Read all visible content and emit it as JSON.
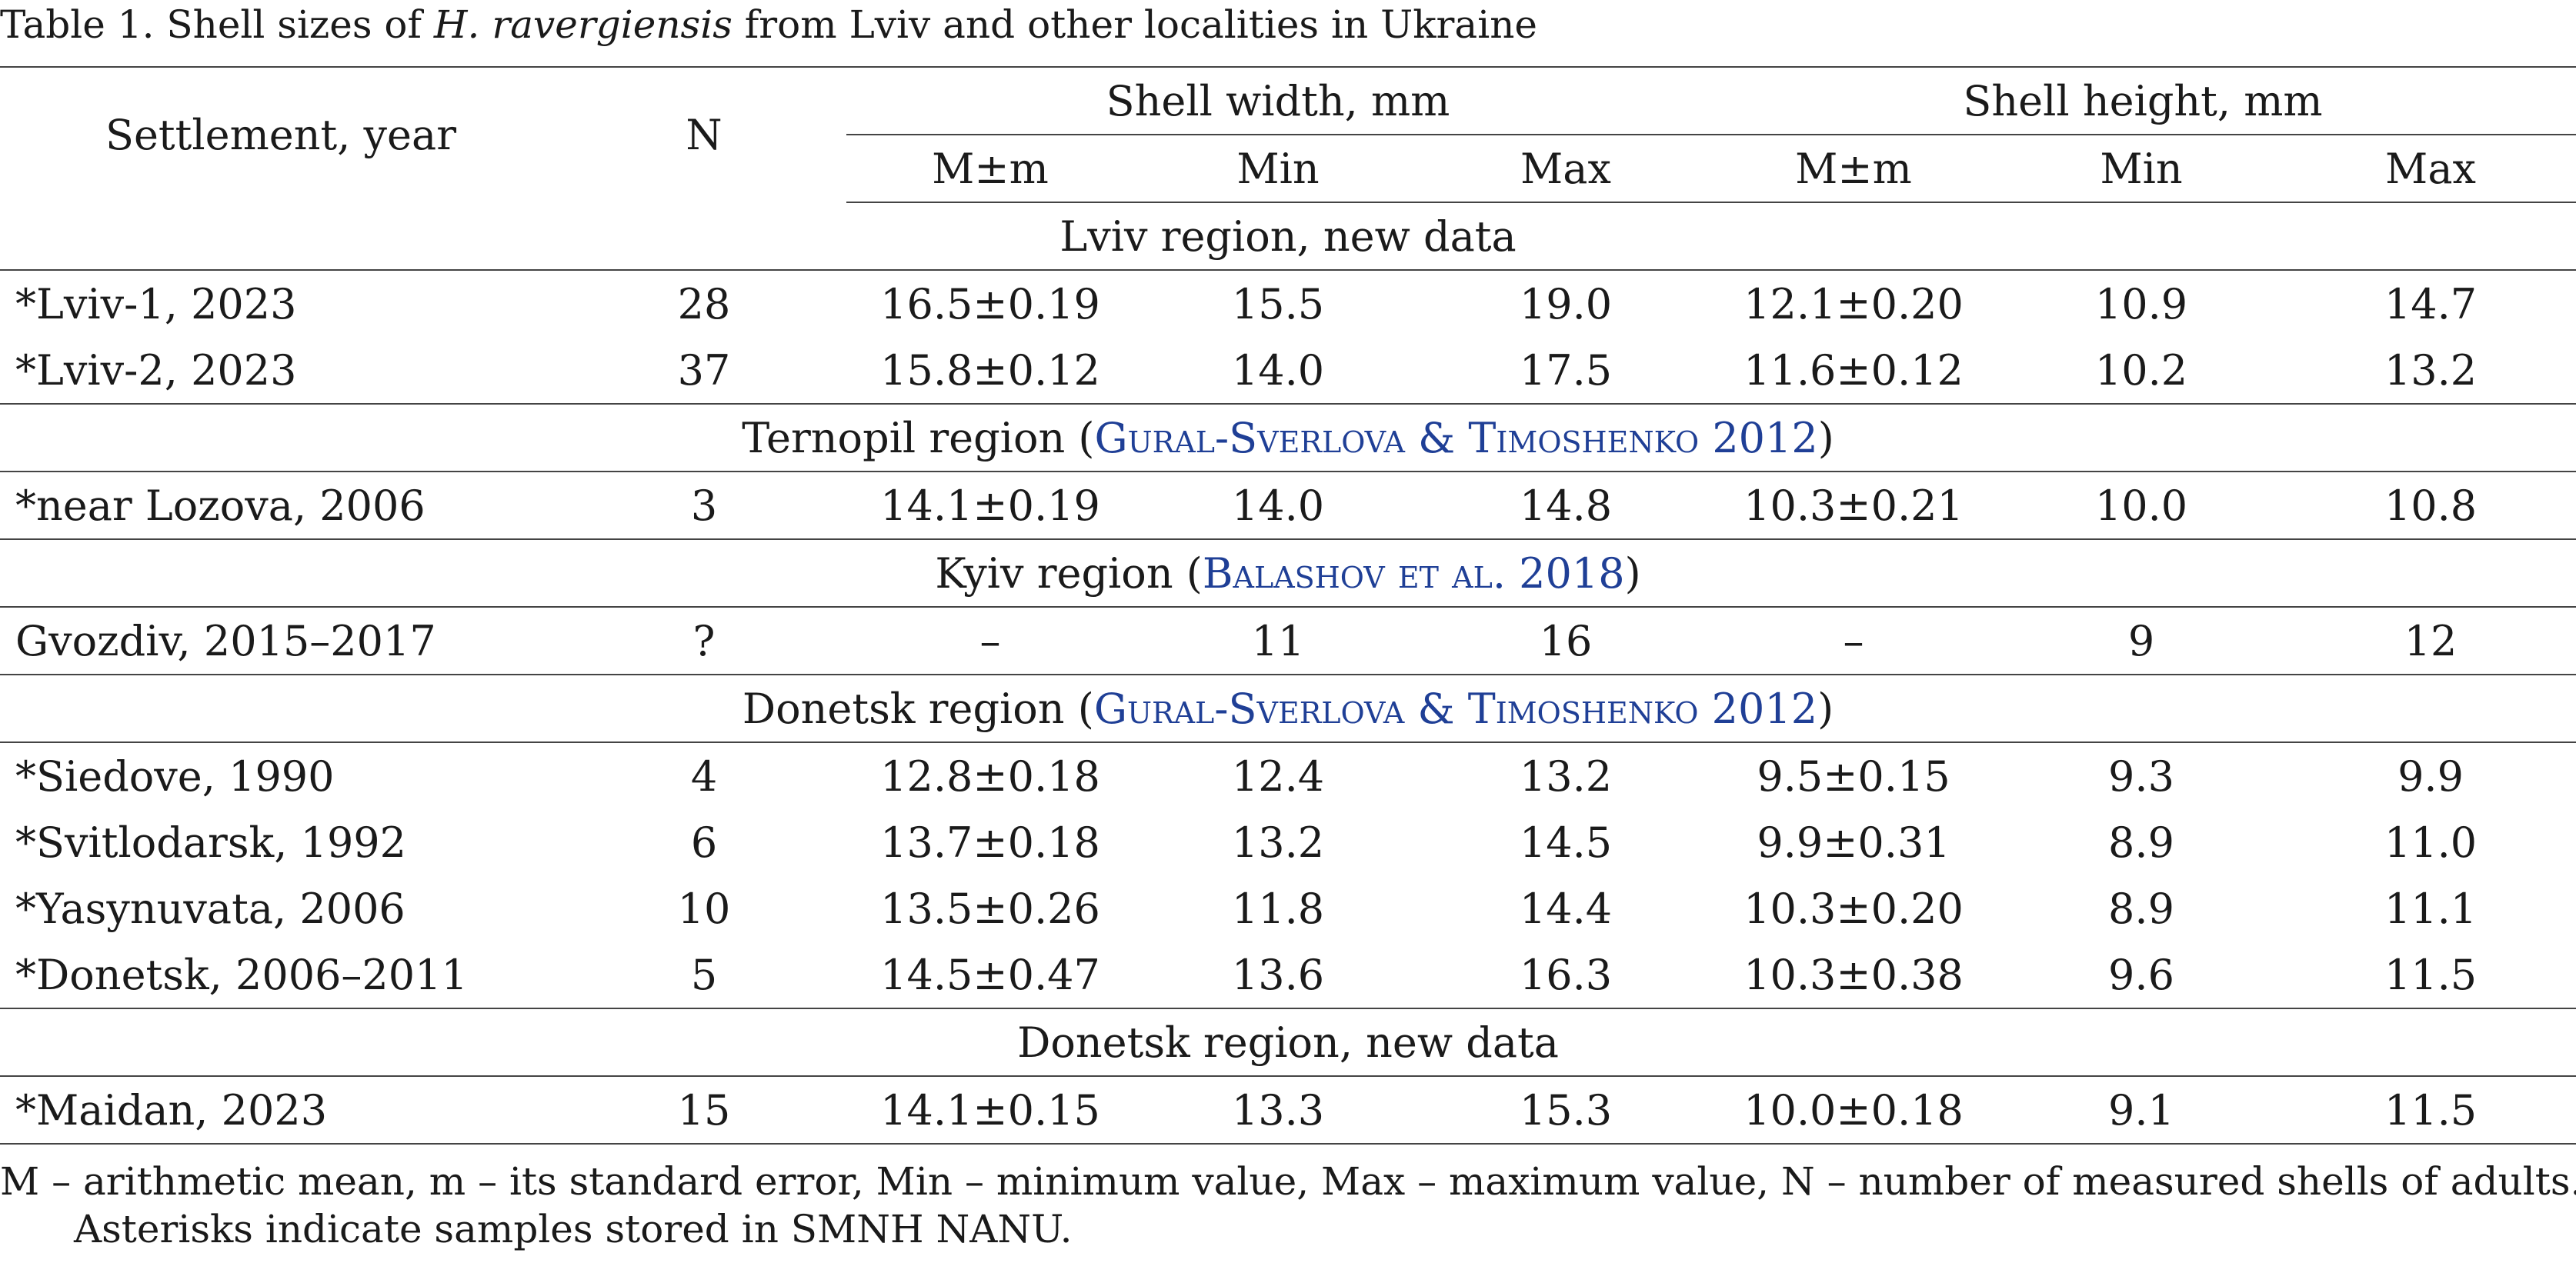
{
  "caption": {
    "prefix": "Table 1. Shell sizes of ",
    "species": "H. ravergiensis",
    "suffix": " from Lviv and other localities in Ukraine"
  },
  "header": {
    "settlement": "Settlement, year",
    "n": "N",
    "width_group": "Shell width, mm",
    "height_group": "Shell height, mm",
    "sub": [
      "M±m",
      "Min",
      "Max",
      "M±m",
      "Min",
      "Max"
    ]
  },
  "sections": [
    {
      "title": "Lviv region, new data",
      "cite": "",
      "cite_tail": "",
      "rows": [
        {
          "settlement": "*Lviv-1, 2023",
          "n": "28",
          "w_mean": "16.5±0.19",
          "w_min": "15.5",
          "w_max": "19.0",
          "h_mean": "12.1±0.20",
          "h_min": "10.9",
          "h_max": "14.7"
        },
        {
          "settlement": "*Lviv-2, 2023",
          "n": "37",
          "w_mean": "15.8±0.12",
          "w_min": "14.0",
          "w_max": "17.5",
          "h_mean": "11.6±0.12",
          "h_min": "10.2",
          "h_max": "13.2"
        }
      ]
    },
    {
      "title": "Ternopil region (",
      "cite": "Gural-Sverlova & Timoshenko 2012",
      "cite_tail": ")",
      "rows": [
        {
          "settlement": "*near Lozova, 2006",
          "n": "3",
          "w_mean": "14.1±0.19",
          "w_min": "14.0",
          "w_max": "14.8",
          "h_mean": "10.3±0.21",
          "h_min": "10.0",
          "h_max": "10.8"
        }
      ]
    },
    {
      "title": "Kyiv region (",
      "cite": "Balashov et al. 2018",
      "cite_tail": ")",
      "rows": [
        {
          "settlement": "Gvozdiv, 2015–2017",
          "n": "?",
          "w_mean": "–",
          "w_min": "11",
          "w_max": "16",
          "h_mean": "–",
          "h_min": "9",
          "h_max": "12"
        }
      ]
    },
    {
      "title": "Donetsk region (",
      "cite": "Gural-Sverlova & Timoshenko 2012",
      "cite_tail": ")",
      "rows": [
        {
          "settlement": "*Siedove, 1990",
          "n": "4",
          "w_mean": "12.8±0.18",
          "w_min": "12.4",
          "w_max": "13.2",
          "h_mean": "9.5±0.15",
          "h_min": "9.3",
          "h_max": "9.9"
        },
        {
          "settlement": "*Svitlodarsk, 1992",
          "n": "6",
          "w_mean": "13.7±0.18",
          "w_min": "13.2",
          "w_max": "14.5",
          "h_mean": "9.9±0.31",
          "h_min": "8.9",
          "h_max": "11.0"
        },
        {
          "settlement": "*Yasynuvata, 2006",
          "n": "10",
          "w_mean": "13.5±0.26",
          "w_min": "11.8",
          "w_max": "14.4",
          "h_mean": "10.3±0.20",
          "h_min": "8.9",
          "h_max": "11.1"
        },
        {
          "settlement": "*Donetsk, 2006–2011",
          "n": "5",
          "w_mean": "14.5±0.47",
          "w_min": "13.6",
          "w_max": "16.3",
          "h_mean": "10.3±0.38",
          "h_min": "9.6",
          "h_max": "11.5"
        }
      ]
    },
    {
      "title": "Donetsk region, new data",
      "cite": "",
      "cite_tail": "",
      "rows": [
        {
          "settlement": "*Maidan, 2023",
          "n": "15",
          "w_mean": "14.1±0.15",
          "w_min": "13.3",
          "w_max": "15.3",
          "h_mean": "10.0±0.18",
          "h_min": "9.1",
          "h_max": "11.5"
        }
      ]
    }
  ],
  "notes": {
    "line1": "M – arithmetic mean, m – its standard error, Min – minimum value, Max – maximum value, N – number of measured shells of adults.",
    "line2": "Asterisks indicate samples stored in SMNH NANU."
  },
  "colors": {
    "citation": "#1f3f96",
    "text": "#1a1a1a",
    "rule": "#444444"
  }
}
